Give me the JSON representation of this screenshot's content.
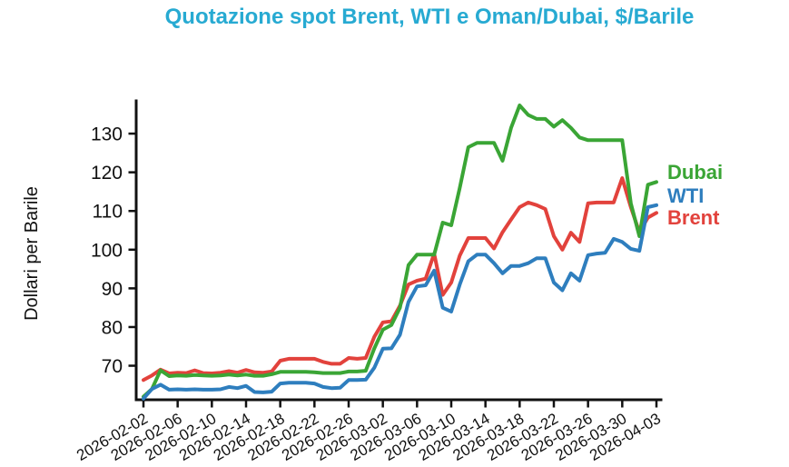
{
  "title": "Quotazione spot Brent, WTI e Oman/Dubai, $/Barile",
  "title_color": "#27aad2",
  "y_axis_label": "Dollari per Barile",
  "axis_color": "#111111",
  "background_color": "#ffffff",
  "chart_data": {
    "type": "line",
    "x_start_date": "2026-02-02",
    "x_end_date": "2026-04-03",
    "x_step_days": 1,
    "x_tick_labels": [
      "2026-02-02",
      "2026-02-06",
      "2026-02-10",
      "2026-02-14",
      "2026-02-18",
      "2026-02-22",
      "2026-02-26",
      "2026-03-02",
      "2026-03-06",
      "2026-03-10",
      "2026-03-14",
      "2026-03-18",
      "2026-03-22",
      "2026-03-26",
      "2026-03-30",
      "2026-04-03"
    ],
    "x_tick_interval_days": 4,
    "y_ticks": [
      70,
      80,
      90,
      100,
      110,
      120,
      130
    ],
    "ylim": [
      61.2,
      138
    ],
    "ylabel": "Dollari per Barile",
    "grid": false,
    "legend_position": "right-outside",
    "series": [
      {
        "name": "Dubai",
        "color": "#3aa535",
        "values": [
          62.0,
          64.0,
          68.8,
          67.3,
          67.5,
          67.4,
          67.6,
          67.5,
          67.4,
          67.5,
          67.7,
          67.5,
          67.7,
          67.4,
          67.4,
          67.8,
          68.4,
          68.4,
          68.4,
          68.4,
          68.3,
          68.1,
          68.1,
          68.1,
          68.5,
          68.5,
          68.7,
          74.5,
          79.3,
          80.5,
          85.0,
          96.0,
          98.7,
          98.7,
          98.7,
          107.0,
          106.3,
          116.0,
          126.5,
          127.6,
          127.6,
          127.6,
          123.0,
          131.5,
          137.3,
          134.8,
          133.8,
          133.8,
          131.8,
          133.5,
          131.5,
          129.0,
          128.3,
          128.3,
          128.3,
          128.3,
          128.3,
          112.0,
          103.5,
          116.8,
          117.5
        ]
      },
      {
        "name": "WTI",
        "color": "#2e7ebe",
        "values": [
          61.5,
          64.0,
          65.1,
          63.8,
          63.9,
          63.8,
          63.9,
          63.8,
          63.8,
          63.9,
          64.5,
          64.2,
          64.8,
          63.2,
          63.1,
          63.3,
          65.4,
          65.6,
          65.6,
          65.6,
          65.4,
          64.5,
          64.2,
          64.3,
          66.3,
          66.3,
          66.4,
          69.5,
          74.4,
          74.5,
          78.0,
          86.5,
          90.5,
          90.8,
          94.6,
          85.0,
          84.0,
          91.0,
          97.0,
          98.7,
          98.7,
          96.5,
          93.9,
          95.8,
          95.8,
          96.5,
          97.8,
          97.8,
          91.5,
          89.5,
          93.9,
          92.0,
          98.6,
          99.0,
          99.2,
          102.8,
          102.0,
          100.2,
          99.7,
          111.0,
          111.5
        ]
      },
      {
        "name": "Brent",
        "color": "#e2423c",
        "values": [
          66.3,
          67.5,
          69.0,
          68.0,
          68.2,
          68.1,
          68.8,
          68.1,
          68.0,
          68.2,
          68.6,
          68.2,
          68.9,
          68.3,
          68.2,
          68.5,
          71.3,
          71.8,
          71.8,
          71.8,
          71.8,
          71.0,
          70.5,
          70.5,
          72.0,
          71.8,
          72.0,
          77.5,
          81.2,
          81.5,
          85.5,
          91.0,
          92.0,
          92.5,
          99.0,
          88.3,
          91.5,
          98.5,
          103.0,
          103.0,
          103.0,
          100.3,
          104.5,
          107.8,
          111.0,
          112.2,
          111.5,
          110.5,
          103.5,
          100.0,
          104.4,
          102.0,
          112.0,
          112.2,
          112.2,
          112.2,
          118.5,
          111.0,
          104.5,
          108.3,
          109.5
        ]
      }
    ]
  }
}
